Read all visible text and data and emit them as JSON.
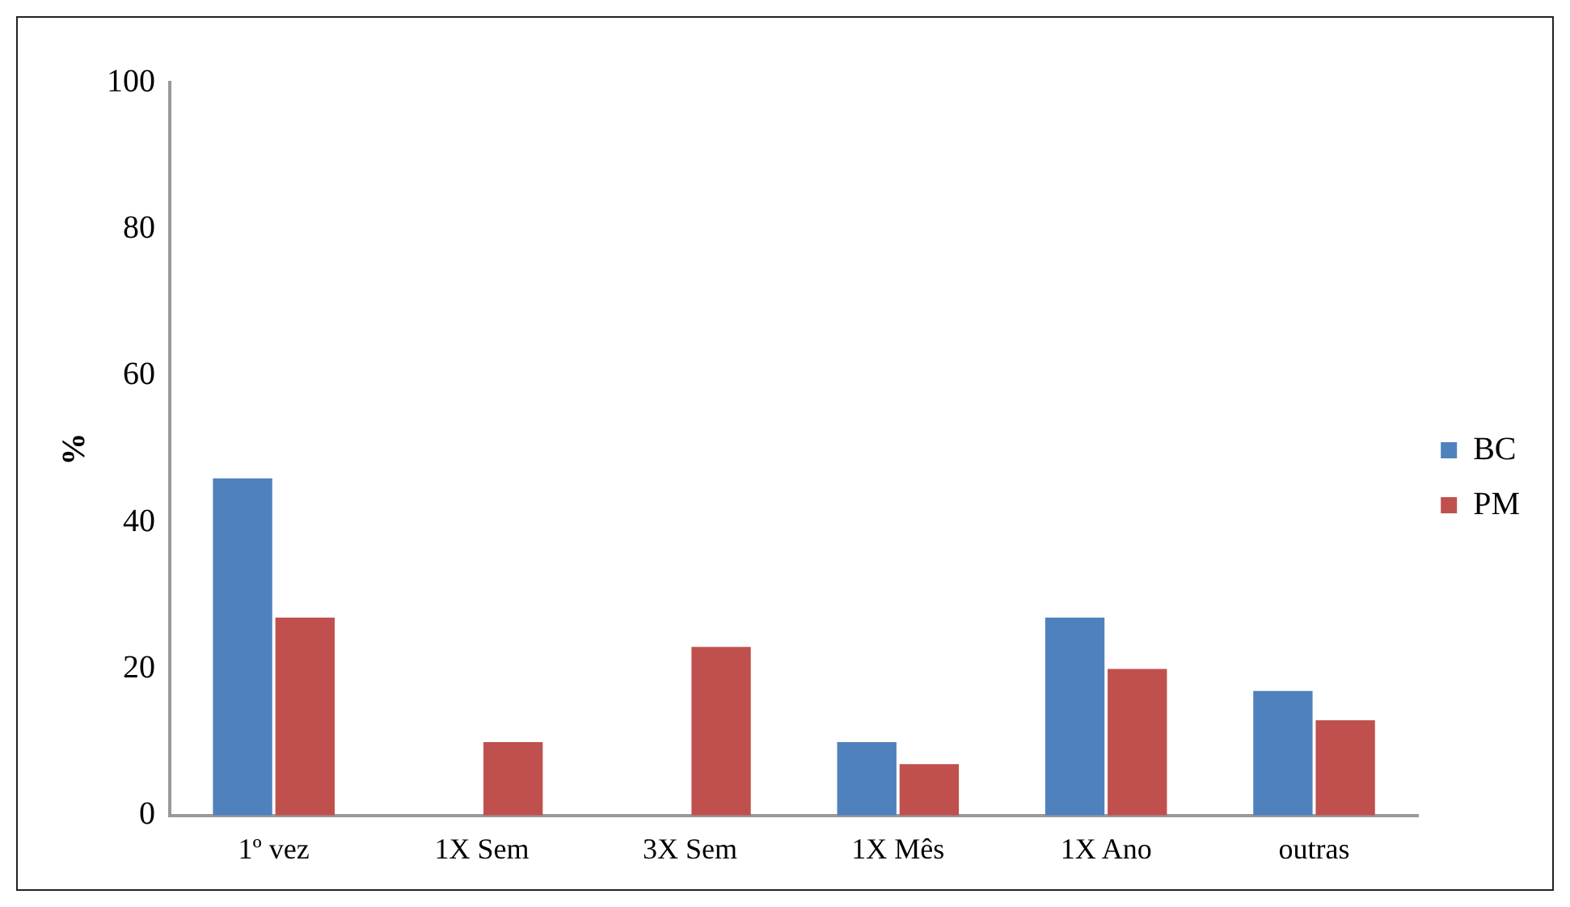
{
  "chart_data": {
    "type": "bar",
    "ylabel": "%",
    "categories": [
      "1º vez",
      "1X Sem",
      "3X Sem",
      "1X Mês",
      "1X Ano",
      "outras"
    ],
    "series": [
      {
        "name": "BC",
        "color": "#4f81bd",
        "values": [
          46,
          0,
          0,
          10,
          27,
          17
        ]
      },
      {
        "name": "PM",
        "color": "#c0504d",
        "values": [
          27,
          10,
          23,
          7,
          20,
          13
        ]
      }
    ],
    "ylim": [
      0,
      100
    ],
    "yticks": [
      0,
      20,
      40,
      60,
      80,
      100
    ],
    "grid": false,
    "legend": "right"
  }
}
